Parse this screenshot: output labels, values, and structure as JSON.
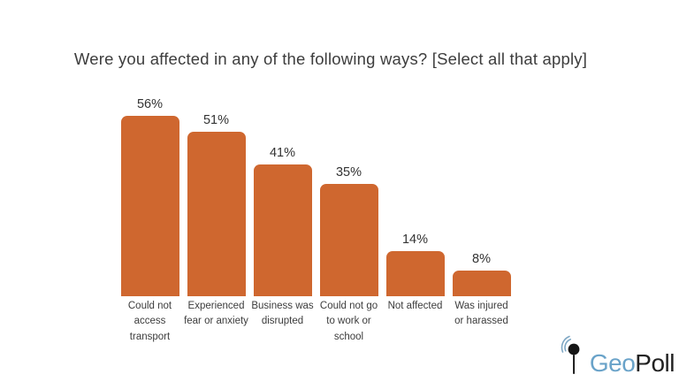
{
  "chart_data": {
    "type": "bar",
    "title": "Were you affected in any of the following ways? [Select all that apply]",
    "categories": [
      "Could not access transport",
      "Experienced fear or anxiety",
      "Business was disrupted",
      "Could not go to work or school",
      "Not affected",
      "Was injured or harassed"
    ],
    "category_lines": [
      "Could not\naccess\ntransport",
      "Experienced\nfear or anxiety",
      "Business was\ndisrupted",
      "Could not go\nto work or\nschool",
      "Not affected",
      "Was injured\nor harassed"
    ],
    "values": [
      56,
      51,
      41,
      35,
      14,
      8
    ],
    "value_labels": [
      "56%",
      "51%",
      "41%",
      "35%",
      "14%",
      "8%"
    ],
    "unit": "%",
    "ylim": [
      0,
      60
    ],
    "grid": false,
    "axes_visible": false,
    "legend": "none",
    "bar_color": "#cf672f",
    "label_color": "#3c3c3c"
  },
  "logo": {
    "icon": "map-pin-signal-icon",
    "text_geo": "Geo",
    "text_poll": "Poll",
    "geo_color": "#6aa3c9",
    "poll_color": "#212121",
    "pin_color": "#151515",
    "signal_color": "#7ea7c4"
  }
}
